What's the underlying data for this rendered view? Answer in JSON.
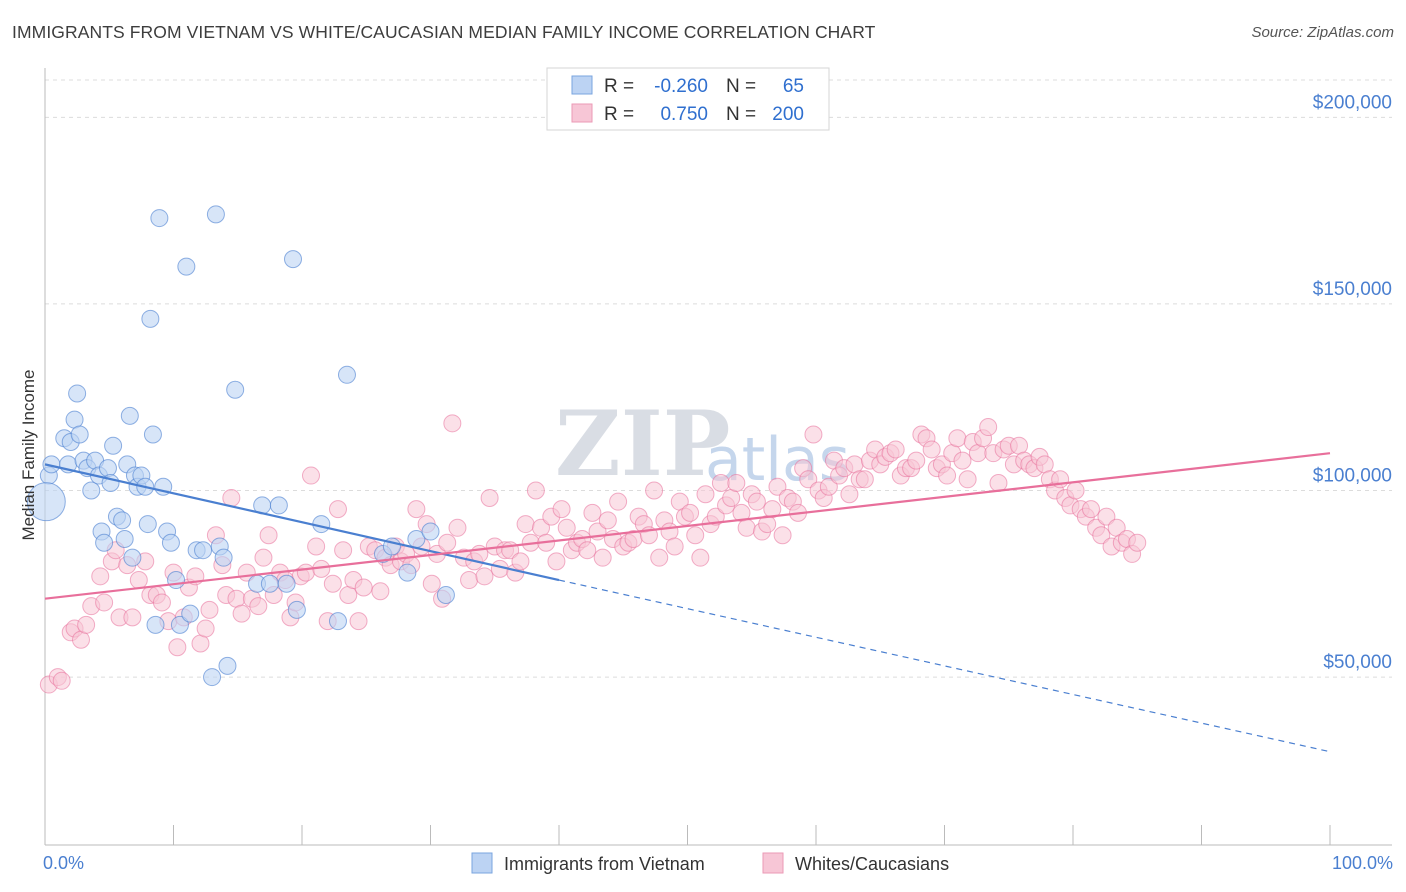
{
  "title": "IMMIGRANTS FROM VIETNAM VS WHITE/CAUCASIAN MEDIAN FAMILY INCOME CORRELATION CHART",
  "source": "Source: ZipAtlas.com",
  "watermark": {
    "zip": "ZIP",
    "atlas": "atlas"
  },
  "colors": {
    "blue": "#4a7fd0",
    "blue_fill": "#bcd3f3",
    "pink": "#e86f9b",
    "pink_fill": "#f7c6d6",
    "grid": "#dcdcdc"
  },
  "legend": {
    "r_label": "R =",
    "n_label": "N =",
    "rows": [
      {
        "r": "-0.260",
        "n": "65"
      },
      {
        "r": "0.750",
        "n": "200"
      }
    ]
  },
  "bottom_legend": [
    "Immigrants from Vietnam",
    "Whites/Caucasians"
  ],
  "chart_data": {
    "type": "scatter",
    "title": "IMMIGRANTS FROM VIETNAM VS WHITE/CAUCASIAN MEDIAN FAMILY INCOME CORRELATION CHART",
    "xlabel": "",
    "ylabel": "Median Family Income",
    "x_tick_labels": [
      "0.0%",
      "100.0%"
    ],
    "y_tick_labels": [
      "$50,000",
      "$100,000",
      "$150,000",
      "$200,000"
    ],
    "y_ticks": [
      50000,
      100000,
      150000,
      200000
    ],
    "xlim": [
      0,
      100
    ],
    "ylim": [
      5000,
      210000
    ],
    "series": [
      {
        "name": "Immigrants from Vietnam",
        "color": "#4a7fd0",
        "r": -0.26,
        "n": 65,
        "trend": {
          "x0": 0,
          "y0": 107000,
          "x1": 40,
          "y1": 76000,
          "dash_to_x": 100,
          "dash_to_y": 30000
        },
        "points": [
          [
            0.3,
            104000
          ],
          [
            0.5,
            107000
          ],
          [
            1.5,
            114000
          ],
          [
            1.8,
            107000
          ],
          [
            2.0,
            113000
          ],
          [
            2.3,
            119000
          ],
          [
            2.5,
            126000
          ],
          [
            2.7,
            115000
          ],
          [
            3.0,
            108000
          ],
          [
            3.3,
            106000
          ],
          [
            3.6,
            100000
          ],
          [
            3.9,
            108000
          ],
          [
            4.2,
            104000
          ],
          [
            4.4,
            89000
          ],
          [
            4.6,
            86000
          ],
          [
            4.9,
            106000
          ],
          [
            5.1,
            102000
          ],
          [
            5.3,
            112000
          ],
          [
            5.6,
            93000
          ],
          [
            6.0,
            92000
          ],
          [
            6.2,
            87000
          ],
          [
            6.4,
            107000
          ],
          [
            6.6,
            120000
          ],
          [
            6.8,
            82000
          ],
          [
            7.0,
            104000
          ],
          [
            7.2,
            101000
          ],
          [
            7.5,
            104000
          ],
          [
            7.8,
            101000
          ],
          [
            8.0,
            91000
          ],
          [
            8.2,
            146000
          ],
          [
            8.4,
            115000
          ],
          [
            8.6,
            64000
          ],
          [
            8.9,
            173000
          ],
          [
            9.2,
            101000
          ],
          [
            9.5,
            89000
          ],
          [
            9.8,
            86000
          ],
          [
            10.2,
            76000
          ],
          [
            10.5,
            64000
          ],
          [
            11.0,
            160000
          ],
          [
            11.3,
            67000
          ],
          [
            11.8,
            84000
          ],
          [
            12.3,
            84000
          ],
          [
            13.0,
            50000
          ],
          [
            13.3,
            174000
          ],
          [
            13.6,
            85000
          ],
          [
            13.9,
            82000
          ],
          [
            14.2,
            53000
          ],
          [
            14.8,
            127000
          ],
          [
            16.5,
            75000
          ],
          [
            16.9,
            96000
          ],
          [
            17.5,
            75000
          ],
          [
            18.2,
            96000
          ],
          [
            18.8,
            75000
          ],
          [
            19.3,
            162000
          ],
          [
            19.6,
            68000
          ],
          [
            21.5,
            91000
          ],
          [
            22.8,
            65000
          ],
          [
            23.5,
            131000
          ],
          [
            26.3,
            83000
          ],
          [
            27.0,
            85000
          ],
          [
            28.2,
            78000
          ],
          [
            28.9,
            87000
          ],
          [
            30.0,
            89000
          ],
          [
            31.2,
            72000
          ],
          [
            0.1,
            97000
          ]
        ]
      },
      {
        "name": "Whites/Caucasians",
        "color": "#e86f9b",
        "r": 0.75,
        "n": 200,
        "trend": {
          "x0": 0,
          "y0": 71000,
          "x1": 100,
          "y1": 110000
        },
        "points": [
          [
            0.3,
            48000
          ],
          [
            1.0,
            50000
          ],
          [
            1.3,
            49000
          ],
          [
            2.0,
            62000
          ],
          [
            2.3,
            63000
          ],
          [
            2.8,
            60000
          ],
          [
            3.2,
            64000
          ],
          [
            3.6,
            69000
          ],
          [
            4.3,
            77000
          ],
          [
            4.6,
            70000
          ],
          [
            5.2,
            81000
          ],
          [
            5.5,
            84000
          ],
          [
            5.8,
            66000
          ],
          [
            6.4,
            80000
          ],
          [
            6.8,
            66000
          ],
          [
            7.3,
            76000
          ],
          [
            7.8,
            81000
          ],
          [
            8.2,
            72000
          ],
          [
            8.7,
            72000
          ],
          [
            9.1,
            70000
          ],
          [
            9.6,
            65000
          ],
          [
            10.0,
            78000
          ],
          [
            10.3,
            58000
          ],
          [
            10.8,
            66000
          ],
          [
            11.2,
            74000
          ],
          [
            11.7,
            77000
          ],
          [
            12.1,
            59000
          ],
          [
            12.5,
            63000
          ],
          [
            12.8,
            68000
          ],
          [
            13.3,
            88000
          ],
          [
            13.8,
            80000
          ],
          [
            14.1,
            72000
          ],
          [
            14.5,
            98000
          ],
          [
            14.9,
            71000
          ],
          [
            15.3,
            67000
          ],
          [
            15.7,
            78000
          ],
          [
            16.1,
            71000
          ],
          [
            16.6,
            69000
          ],
          [
            17.0,
            82000
          ],
          [
            17.4,
            88000
          ],
          [
            17.8,
            72000
          ],
          [
            18.3,
            78000
          ],
          [
            18.7,
            76000
          ],
          [
            19.1,
            66000
          ],
          [
            19.5,
            70000
          ],
          [
            19.9,
            77000
          ],
          [
            20.3,
            78000
          ],
          [
            20.7,
            104000
          ],
          [
            21.1,
            85000
          ],
          [
            21.5,
            79000
          ],
          [
            22.0,
            65000
          ],
          [
            22.4,
            75000
          ],
          [
            22.8,
            95000
          ],
          [
            23.2,
            84000
          ],
          [
            23.6,
            72000
          ],
          [
            24.0,
            76000
          ],
          [
            24.4,
            65000
          ],
          [
            24.8,
            74000
          ],
          [
            25.2,
            85000
          ],
          [
            25.7,
            84000
          ],
          [
            26.1,
            73000
          ],
          [
            26.5,
            82000
          ],
          [
            26.9,
            80000
          ],
          [
            27.3,
            85000
          ],
          [
            27.7,
            81000
          ],
          [
            28.1,
            83000
          ],
          [
            28.5,
            80000
          ],
          [
            28.9,
            95000
          ],
          [
            29.3,
            85000
          ],
          [
            29.7,
            91000
          ],
          [
            30.1,
            75000
          ],
          [
            30.5,
            83000
          ],
          [
            30.9,
            71000
          ],
          [
            31.3,
            86000
          ],
          [
            31.7,
            118000
          ],
          [
            32.1,
            90000
          ],
          [
            32.6,
            82000
          ],
          [
            33.0,
            76000
          ],
          [
            33.4,
            81000
          ],
          [
            33.8,
            83000
          ],
          [
            34.2,
            77000
          ],
          [
            34.6,
            98000
          ],
          [
            35.0,
            85000
          ],
          [
            35.4,
            79000
          ],
          [
            35.8,
            84000
          ],
          [
            36.2,
            84000
          ],
          [
            36.6,
            78000
          ],
          [
            37.0,
            81000
          ],
          [
            37.4,
            91000
          ],
          [
            37.8,
            86000
          ],
          [
            38.2,
            100000
          ],
          [
            38.6,
            90000
          ],
          [
            39.0,
            86000
          ],
          [
            39.4,
            93000
          ],
          [
            39.8,
            81000
          ],
          [
            40.2,
            95000
          ],
          [
            40.6,
            90000
          ],
          [
            41.0,
            84000
          ],
          [
            41.4,
            86000
          ],
          [
            41.8,
            87000
          ],
          [
            42.2,
            84000
          ],
          [
            42.6,
            94000
          ],
          [
            43.0,
            89000
          ],
          [
            43.4,
            82000
          ],
          [
            43.8,
            92000
          ],
          [
            44.2,
            87000
          ],
          [
            44.6,
            97000
          ],
          [
            45.0,
            85000
          ],
          [
            45.4,
            86000
          ],
          [
            45.8,
            87000
          ],
          [
            46.2,
            93000
          ],
          [
            46.6,
            91000
          ],
          [
            47.0,
            88000
          ],
          [
            47.4,
            100000
          ],
          [
            47.8,
            82000
          ],
          [
            48.2,
            92000
          ],
          [
            48.6,
            89000
          ],
          [
            49.0,
            85000
          ],
          [
            49.4,
            97000
          ],
          [
            49.8,
            93000
          ],
          [
            50.2,
            94000
          ],
          [
            50.6,
            88000
          ],
          [
            51.0,
            82000
          ],
          [
            51.4,
            99000
          ],
          [
            51.8,
            91000
          ],
          [
            52.2,
            93000
          ],
          [
            52.6,
            102000
          ],
          [
            53.0,
            96000
          ],
          [
            53.4,
            98000
          ],
          [
            53.8,
            102000
          ],
          [
            54.2,
            94000
          ],
          [
            54.6,
            90000
          ],
          [
            55.0,
            99000
          ],
          [
            55.4,
            97000
          ],
          [
            55.8,
            89000
          ],
          [
            56.2,
            91000
          ],
          [
            56.6,
            95000
          ],
          [
            57.0,
            101000
          ],
          [
            57.4,
            88000
          ],
          [
            57.8,
            98000
          ],
          [
            58.2,
            97000
          ],
          [
            58.6,
            94000
          ],
          [
            59.0,
            106000
          ],
          [
            59.4,
            103000
          ],
          [
            59.8,
            115000
          ],
          [
            60.2,
            100000
          ],
          [
            60.6,
            98000
          ],
          [
            61.0,
            101000
          ],
          [
            61.4,
            108000
          ],
          [
            61.8,
            104000
          ],
          [
            62.2,
            106000
          ],
          [
            62.6,
            99000
          ],
          [
            63.0,
            107000
          ],
          [
            63.4,
            103000
          ],
          [
            63.8,
            103000
          ],
          [
            64.2,
            108000
          ],
          [
            64.6,
            111000
          ],
          [
            65.0,
            107000
          ],
          [
            65.4,
            109000
          ],
          [
            65.8,
            110000
          ],
          [
            66.2,
            111000
          ],
          [
            66.6,
            104000
          ],
          [
            67.0,
            106000
          ],
          [
            67.4,
            106000
          ],
          [
            67.8,
            108000
          ],
          [
            68.2,
            115000
          ],
          [
            68.6,
            114000
          ],
          [
            69.0,
            111000
          ],
          [
            69.4,
            106000
          ],
          [
            69.8,
            107000
          ],
          [
            70.2,
            104000
          ],
          [
            70.6,
            110000
          ],
          [
            71.0,
            114000
          ],
          [
            71.4,
            108000
          ],
          [
            71.8,
            103000
          ],
          [
            72.2,
            113000
          ],
          [
            72.6,
            110000
          ],
          [
            73.0,
            114000
          ],
          [
            73.4,
            117000
          ],
          [
            73.8,
            110000
          ],
          [
            74.2,
            102000
          ],
          [
            74.6,
            111000
          ],
          [
            75.0,
            112000
          ],
          [
            75.4,
            107000
          ],
          [
            75.8,
            112000
          ],
          [
            76.2,
            108000
          ],
          [
            76.6,
            107000
          ],
          [
            77.0,
            106000
          ],
          [
            77.4,
            109000
          ],
          [
            77.8,
            107000
          ],
          [
            78.2,
            103000
          ],
          [
            78.6,
            100000
          ],
          [
            79.0,
            103000
          ],
          [
            79.4,
            98000
          ],
          [
            79.8,
            96000
          ],
          [
            80.2,
            100000
          ],
          [
            80.6,
            95000
          ],
          [
            81.0,
            93000
          ],
          [
            81.4,
            95000
          ],
          [
            81.8,
            90000
          ],
          [
            82.2,
            88000
          ],
          [
            82.6,
            93000
          ],
          [
            83.0,
            85000
          ],
          [
            83.4,
            90000
          ],
          [
            83.8,
            86000
          ],
          [
            84.2,
            87000
          ],
          [
            84.6,
            83000
          ],
          [
            85.0,
            86000
          ]
        ]
      }
    ]
  }
}
